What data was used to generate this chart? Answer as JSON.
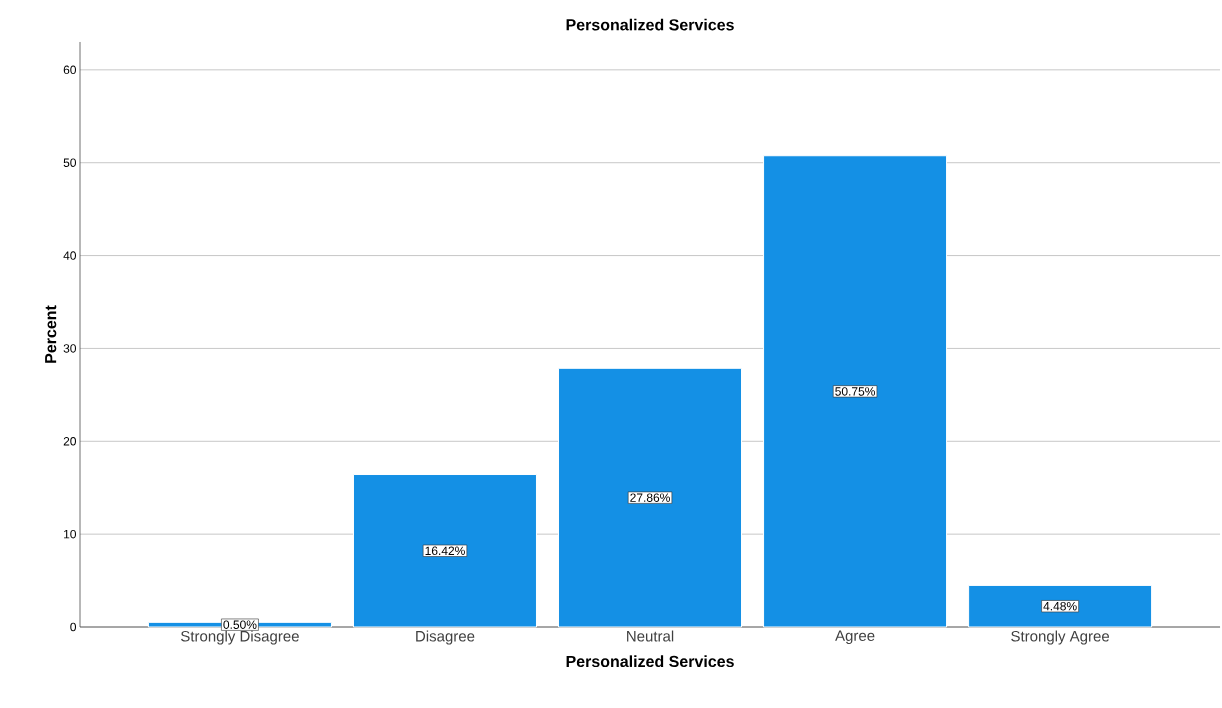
{
  "chart_data": {
    "type": "bar",
    "title": "Personalized Services",
    "xlabel": "Personalized Services",
    "ylabel": "Percent",
    "categories": [
      "Strongly Disagree",
      "Disagree",
      "Neutral",
      "Agree",
      "Strongly Agree"
    ],
    "values": [
      0.5,
      16.42,
      27.86,
      50.75,
      4.48
    ],
    "value_labels": [
      "0.50%",
      "16.42%",
      "27.86%",
      "50.75%",
      "4.48%"
    ],
    "color": "#1490e5",
    "ylim": [
      0,
      63
    ],
    "yticks": [
      0,
      10,
      20,
      30,
      40,
      50,
      60
    ],
    "grid": "y"
  }
}
